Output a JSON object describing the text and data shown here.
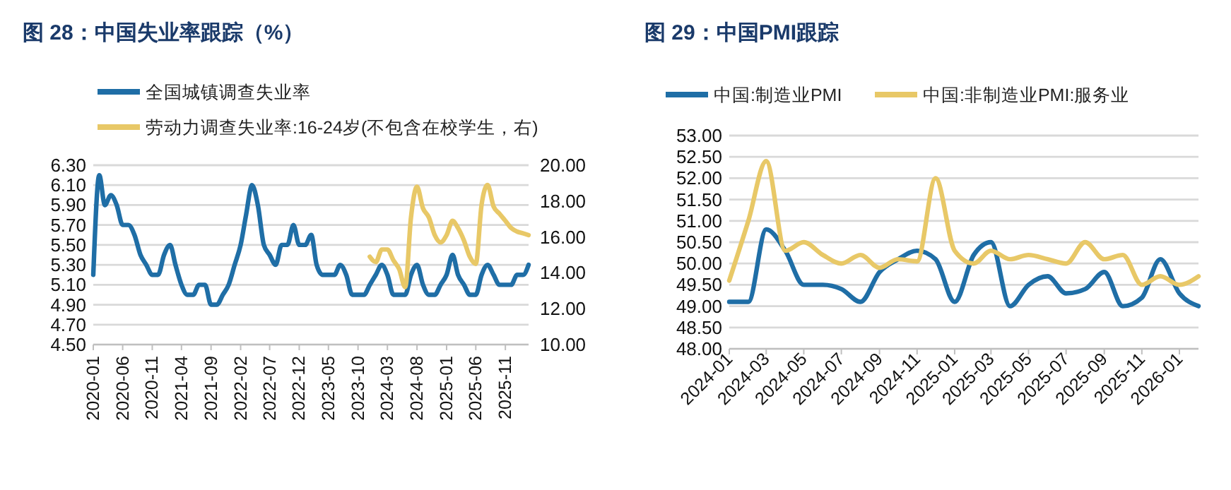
{
  "chart_data": [
    {
      "type": "line",
      "title": "图 28：中国失业率跟踪（%）",
      "legend": "top left",
      "grid": "y",
      "line_style": "solid",
      "xlim": [
        "2020-01",
        "2026-03"
      ],
      "xticks": [
        "2020-01",
        "2020-06",
        "2020-11",
        "2021-04",
        "2021-09",
        "2022-02",
        "2022-07",
        "2022-12",
        "2023-05",
        "2023-10",
        "2024-03",
        "2024-08",
        "2025-01",
        "2025-06",
        "2025-11"
      ],
      "ylim": [
        4.5,
        6.3
      ],
      "yticks": [
        {
          "value": 4.5,
          "label": "4.50"
        },
        {
          "value": 4.7,
          "label": "4.70"
        },
        {
          "value": 4.9,
          "label": "4.90"
        },
        {
          "value": 5.1,
          "label": "5.10"
        },
        {
          "value": 5.3,
          "label": "5.30"
        },
        {
          "value": 5.5,
          "label": "5.50"
        },
        {
          "value": 5.7,
          "label": "5.70"
        },
        {
          "value": 5.9,
          "label": "5.90"
        },
        {
          "value": 6.1,
          "label": "6.10"
        },
        {
          "value": 6.3,
          "label": "6.30"
        }
      ],
      "y2lim": [
        10,
        20
      ],
      "y2ticks": [
        {
          "value": 10,
          "label": "10.00"
        },
        {
          "value": 12,
          "label": "12.00"
        },
        {
          "value": 14,
          "label": "14.00"
        },
        {
          "value": 16,
          "label": "16.00"
        },
        {
          "value": 18,
          "label": "18.00"
        },
        {
          "value": 20,
          "label": "20.00"
        }
      ],
      "series": [
        {
          "name": "全国城镇调查失业率",
          "color": "#1f6ea6",
          "x": [
            "2020-01",
            "2020-02",
            "2020-03",
            "2020-04",
            "2020-05",
            "2020-06",
            "2020-07",
            "2020-08",
            "2020-09",
            "2020-10",
            "2020-11",
            "2020-12",
            "2021-01",
            "2021-02",
            "2021-03",
            "2021-04",
            "2021-05",
            "2021-06",
            "2021-07",
            "2021-08",
            "2021-09",
            "2021-10",
            "2021-11",
            "2021-12",
            "2022-01",
            "2022-02",
            "2022-03",
            "2022-04",
            "2022-05",
            "2022-06",
            "2022-07",
            "2022-08",
            "2022-09",
            "2022-10",
            "2022-11",
            "2022-12",
            "2023-01",
            "2023-02",
            "2023-03",
            "2023-04",
            "2023-05",
            "2023-06",
            "2023-07",
            "2023-08",
            "2023-09",
            "2023-10",
            "2023-11",
            "2023-12",
            "2024-01",
            "2024-02",
            "2024-03",
            "2024-04",
            "2024-05",
            "2024-06",
            "2024-07",
            "2024-08",
            "2024-09",
            "2024-10",
            "2024-11",
            "2024-12",
            "2025-01",
            "2025-02",
            "2025-03",
            "2025-04",
            "2025-05",
            "2025-06",
            "2025-07",
            "2025-08",
            "2025-09",
            "2025-10",
            "2025-11",
            "2025-12",
            "2026-01",
            "2026-02",
            "2026-03"
          ],
          "values": [
            5.2,
            6.2,
            5.9,
            6.0,
            5.9,
            5.7,
            5.7,
            5.6,
            5.4,
            5.3,
            5.2,
            5.2,
            5.4,
            5.5,
            5.3,
            5.1,
            5.0,
            5.0,
            5.1,
            5.1,
            4.9,
            4.9,
            5.0,
            5.1,
            5.3,
            5.5,
            5.8,
            6.1,
            5.9,
            5.5,
            5.4,
            5.3,
            5.5,
            5.5,
            5.7,
            5.5,
            5.5,
            5.6,
            5.3,
            5.2,
            5.2,
            5.2,
            5.3,
            5.2,
            5.0,
            5.0,
            5.0,
            5.1,
            5.2,
            5.3,
            5.2,
            5.0,
            5.0,
            5.0,
            5.2,
            5.3,
            5.1,
            5.0,
            5.0,
            5.1,
            5.2,
            5.4,
            5.2,
            5.1,
            5.0,
            5.0,
            5.2,
            5.3,
            5.2,
            5.1,
            5.1,
            5.1,
            5.2,
            5.2,
            5.3
          ]
        },
        {
          "name": "劳动力调查失业率:16-24岁(不包含在校学生，右)",
          "color": "#e8c867",
          "axis": "y2",
          "x": [
            "2023-12",
            "2024-01",
            "2024-02",
            "2024-03",
            "2024-04",
            "2024-05",
            "2024-06",
            "2024-07",
            "2024-08",
            "2024-09",
            "2024-10",
            "2024-11",
            "2024-12",
            "2025-01",
            "2025-02",
            "2025-03",
            "2025-04",
            "2025-05",
            "2025-06",
            "2025-07",
            "2025-08",
            "2025-09",
            "2025-10",
            "2025-11",
            "2025-12",
            "2026-01",
            "2026-02",
            "2026-03"
          ],
          "values": [
            14.9,
            14.6,
            15.3,
            15.3,
            14.7,
            14.2,
            13.2,
            17.1,
            18.8,
            17.6,
            17.1,
            16.1,
            15.7,
            16.1,
            16.9,
            16.5,
            15.8,
            14.9,
            14.5,
            17.8,
            18.9,
            17.7,
            17.3,
            16.9,
            16.5,
            16.3,
            16.2,
            16.1
          ]
        }
      ]
    },
    {
      "type": "line",
      "title": "图 29：中国PMI跟踪",
      "legend": "top",
      "grid": "y",
      "line_style": "solid",
      "xlim": [
        "2024-01",
        "2026-02"
      ],
      "xticks": [
        "2024-01",
        "2024-03",
        "2024-05",
        "2024-07",
        "2024-09",
        "2024-11",
        "2025-01",
        "2025-03",
        "2025-05",
        "2025-07",
        "2025-09",
        "2025-11",
        "2026-01"
      ],
      "ylim": [
        48,
        53
      ],
      "yticks": [
        {
          "value": 48,
          "label": "48.00"
        },
        {
          "value": 48.5,
          "label": "48.50"
        },
        {
          "value": 49,
          "label": "49.00"
        },
        {
          "value": 49.5,
          "label": "49.50"
        },
        {
          "value": 50,
          "label": "50.00"
        },
        {
          "value": 50.5,
          "label": "50.50"
        },
        {
          "value": 51,
          "label": "51.00"
        },
        {
          "value": 51.5,
          "label": "51.50"
        },
        {
          "value": 52,
          "label": "52.00"
        },
        {
          "value": 52.5,
          "label": "52.50"
        },
        {
          "value": 53,
          "label": "53.00"
        }
      ],
      "x": [
        "2024-01",
        "2024-02",
        "2024-03",
        "2024-04",
        "2024-05",
        "2024-06",
        "2024-07",
        "2024-08",
        "2024-09",
        "2024-10",
        "2024-11",
        "2024-12",
        "2025-01",
        "2025-02",
        "2025-03",
        "2025-04",
        "2025-05",
        "2025-06",
        "2025-07",
        "2025-08",
        "2025-09",
        "2025-10",
        "2025-11",
        "2025-12",
        "2026-01",
        "2026-02"
      ],
      "series": [
        {
          "name": "中国:制造业PMI",
          "color": "#1f6ea6",
          "values": [
            49.1,
            49.1,
            50.8,
            50.3,
            49.5,
            49.5,
            49.4,
            49.1,
            49.8,
            50.1,
            50.3,
            50.1,
            49.1,
            50.2,
            50.5,
            49.0,
            49.5,
            49.7,
            49.3,
            49.4,
            49.8,
            49.0,
            49.2,
            50.1,
            49.3,
            49.0
          ]
        },
        {
          "name": "中国:非制造业PMI:服务业",
          "color": "#e8c867",
          "values": [
            49.6,
            51.0,
            52.4,
            50.3,
            50.5,
            50.2,
            50.0,
            50.2,
            49.9,
            50.1,
            50.05,
            52.0,
            50.3,
            50.0,
            50.3,
            50.1,
            50.2,
            50.1,
            50.0,
            50.5,
            50.1,
            50.2,
            49.5,
            49.7,
            49.5,
            49.7
          ]
        }
      ]
    }
  ]
}
